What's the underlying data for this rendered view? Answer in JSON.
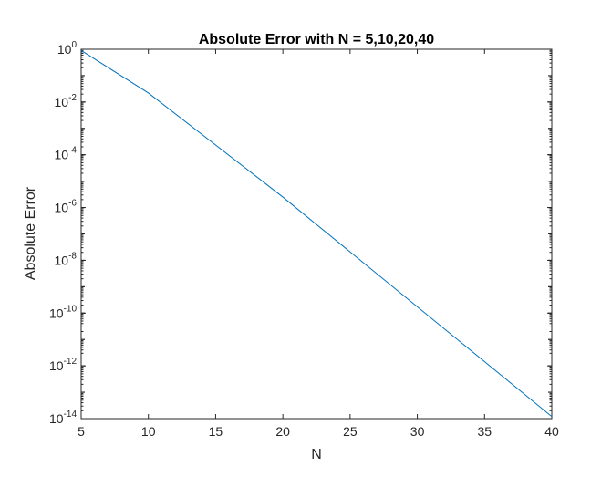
{
  "chart_data": {
    "type": "line",
    "title": "Absolute Error with N = 5,10,20,40",
    "xlabel": "N",
    "ylabel": "Absolute Error",
    "xlim": [
      5,
      40
    ],
    "ylim": [
      1e-14,
      1
    ],
    "yscale": "log",
    "grid": false,
    "x_ticks": [
      5,
      10,
      15,
      20,
      25,
      30,
      35,
      40
    ],
    "y_ticks": [
      {
        "base": "10",
        "exp": "0",
        "value": 1
      },
      {
        "base": "10",
        "exp": "-2",
        "value": 0.01
      },
      {
        "base": "10",
        "exp": "-4",
        "value": 0.0001
      },
      {
        "base": "10",
        "exp": "-6",
        "value": 1e-06
      },
      {
        "base": "10",
        "exp": "-8",
        "value": 1e-08
      },
      {
        "base": "10",
        "exp": "-10",
        "value": 1e-10
      },
      {
        "base": "10",
        "exp": "-12",
        "value": 1e-12
      },
      {
        "base": "10",
        "exp": "-14",
        "value": 1e-14
      }
    ],
    "series": [
      {
        "color": "#0072bd",
        "x": [
          5,
          10,
          20,
          40
        ],
        "y": [
          0.9,
          0.022,
          2.5e-06,
          1.2e-14
        ]
      }
    ]
  }
}
